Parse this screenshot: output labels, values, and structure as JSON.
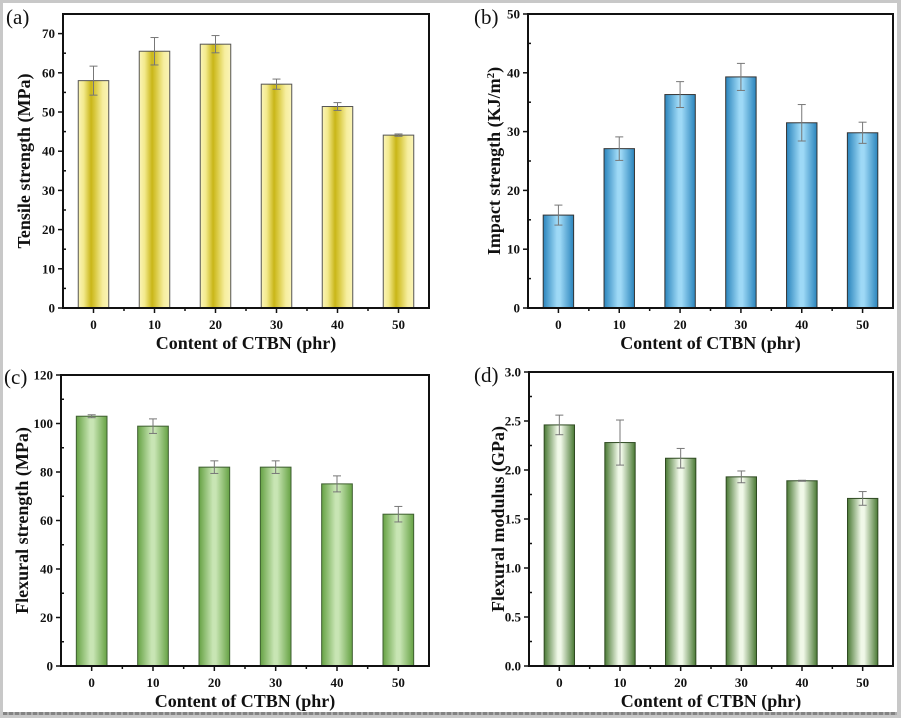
{
  "figure": {
    "domain": "materials-property-bar-charts"
  },
  "chart_data": [
    {
      "id": "a",
      "type": "bar",
      "panel_label": "(a)",
      "title": "",
      "xlabel": "Content of CTBN (phr)",
      "ylabel": "Tensile strength (MPa)",
      "ylabel_sup": "",
      "categories": [
        "0",
        "10",
        "20",
        "30",
        "40",
        "50"
      ],
      "values": [
        58.0,
        65.5,
        67.3,
        57.1,
        51.4,
        44.1
      ],
      "errors": [
        3.7,
        3.5,
        2.2,
        1.3,
        1.0,
        0.3
      ],
      "ylim": [
        0,
        75
      ],
      "yticks": [
        0,
        10,
        20,
        30,
        40,
        50,
        60,
        70
      ],
      "ytick_labels": [
        "0",
        "10",
        "20",
        "30",
        "40",
        "50",
        "60",
        "70"
      ],
      "grid": false,
      "bar_style": "yellow-gradient",
      "colors": {
        "edge": "#fbf4b8",
        "core": "#c9b618",
        "outline": "#555555"
      }
    },
    {
      "id": "b",
      "type": "bar",
      "panel_label": "(b)",
      "title": "",
      "xlabel": "Content of CTBN (phr)",
      "ylabel": "Impact strength (KJ/m",
      "ylabel_sup": "2",
      "ylabel_end": ")",
      "categories": [
        "0",
        "10",
        "20",
        "30",
        "40",
        "50"
      ],
      "values": [
        15.8,
        27.1,
        36.3,
        39.3,
        31.5,
        29.8
      ],
      "errors": [
        1.7,
        2.0,
        2.2,
        2.3,
        3.1,
        1.8
      ],
      "ylim": [
        0,
        50
      ],
      "yticks": [
        0,
        10,
        20,
        30,
        40,
        50
      ],
      "ytick_labels": [
        "0",
        "10",
        "20",
        "30",
        "40",
        "50"
      ],
      "grid": false,
      "bar_style": "blue-gradient",
      "colors": {
        "edge": "#2a84bc",
        "core": "#9ed9f6",
        "outline": "#333333"
      }
    },
    {
      "id": "c",
      "type": "bar",
      "panel_label": "(c)",
      "title": "",
      "xlabel": "Content of CTBN (phr)",
      "ylabel": "Flexural strength (MPa)",
      "ylabel_sup": "",
      "categories": [
        "0",
        "10",
        "20",
        "30",
        "40",
        "50"
      ],
      "values": [
        103.0,
        98.9,
        82.0,
        82.0,
        75.1,
        62.6
      ],
      "errors": [
        0.6,
        3.0,
        2.6,
        2.6,
        3.3,
        3.2
      ],
      "ylim": [
        0,
        120
      ],
      "yticks": [
        0,
        20,
        40,
        60,
        80,
        100,
        120
      ],
      "ytick_labels": [
        "0",
        "20",
        "40",
        "60",
        "80",
        "100",
        "120"
      ],
      "grid": false,
      "bar_style": "green-gradient",
      "colors": {
        "edge": "#66a244",
        "core": "#c8e5b4",
        "outline": "#3e5e30"
      }
    },
    {
      "id": "d",
      "type": "bar",
      "panel_label": "(d)",
      "title": "",
      "xlabel": "Content of CTBN (phr)",
      "ylabel": "Flexural modulus (GPa)",
      "ylabel_sup": "",
      "categories": [
        "0",
        "10",
        "20",
        "30",
        "40",
        "50"
      ],
      "values": [
        2.46,
        2.28,
        2.12,
        1.93,
        1.89,
        1.71
      ],
      "errors": [
        0.1,
        0.23,
        0.1,
        0.06,
        0.005,
        0.07
      ],
      "ylim": [
        0,
        3.0
      ],
      "yticks": [
        0,
        0.5,
        1.0,
        1.5,
        2.0,
        2.5,
        3.0
      ],
      "ytick_labels": [
        "0.0",
        "0.5",
        "1.0",
        "1.5",
        "2.0",
        "2.5",
        "3.0"
      ],
      "grid": false,
      "bar_style": "dark-green-gradient",
      "colors": {
        "edge": "#4a7934",
        "core": "#f0f8e8",
        "outline": "#2f4a22"
      }
    }
  ]
}
